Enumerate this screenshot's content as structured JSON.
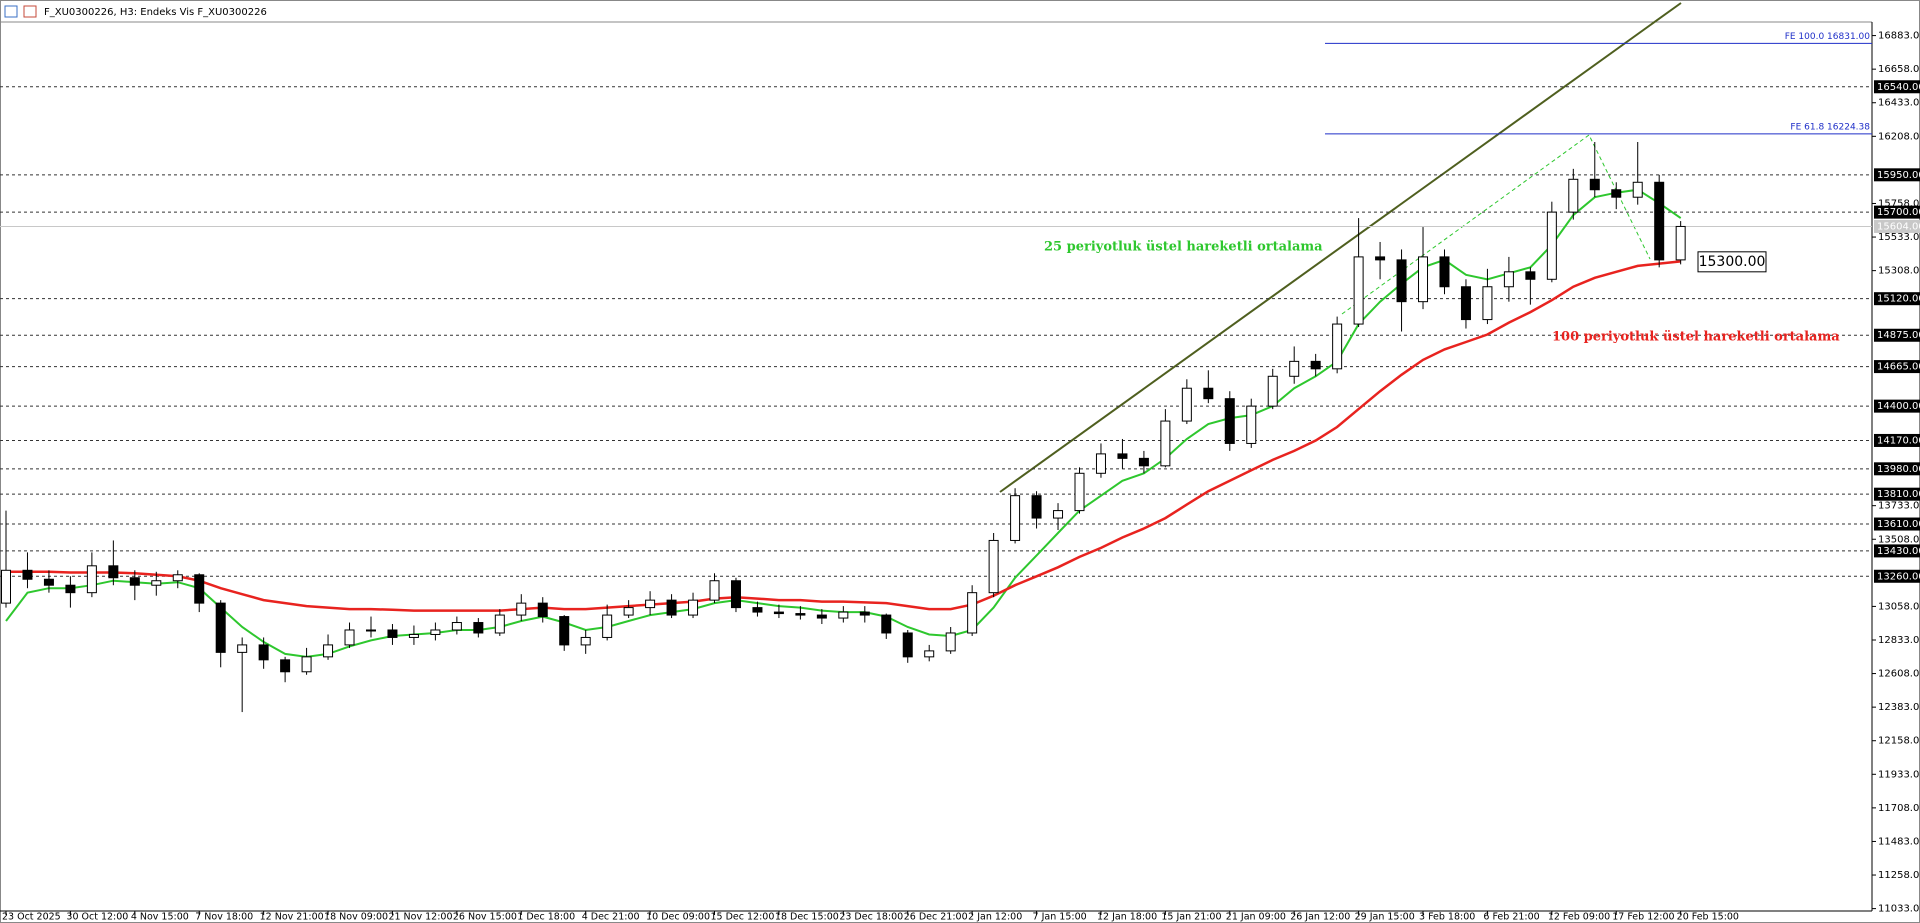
{
  "chart_data": {
    "type": "candlestick",
    "title": "F_XU0300226, H3:  Endeks Vis F_XU0300226",
    "categories": [
      "23 Oct 2025",
      null,
      null,
      "30 Oct 12:00",
      null,
      null,
      "4 Nov 15:00",
      null,
      null,
      "7 Nov 18:00",
      null,
      null,
      "12 Nov 21:00",
      null,
      null,
      "18 Nov 09:00",
      null,
      null,
      "21 Nov 12:00",
      null,
      null,
      "26 Nov 15:00",
      null,
      null,
      "1 Dec 18:00",
      null,
      null,
      "4 Dec 21:00",
      null,
      null,
      "10 Dec 09:00",
      null,
      null,
      "15 Dec 12:00",
      null,
      null,
      "18 Dec 15:00",
      null,
      null,
      "23 Dec 18:00",
      null,
      null,
      "26 Dec 21:00",
      null,
      null,
      "2 Jan 12:00",
      null,
      null,
      "7 Jan 15:00",
      null,
      null,
      "12 Jan 18:00",
      null,
      null,
      "15 Jan 21:00",
      null,
      null,
      "21 Jan 09:00",
      null,
      null,
      "26 Jan 12:00",
      null,
      null,
      "29 Jan 15:00",
      null,
      null,
      "3 Feb 18:00",
      null,
      null,
      "6 Feb 21:00",
      null,
      null,
      "12 Feb 09:00",
      null,
      null,
      "17 Feb 12:00",
      null,
      null,
      "20 Feb 15:00"
    ],
    "open": [
      13080,
      13300,
      13240,
      13200,
      13150,
      13330,
      13250,
      13200,
      13230,
      13270,
      13080,
      12750,
      12800,
      12700,
      12620,
      12720,
      12800,
      12900,
      12900,
      12850,
      12870,
      12900,
      12950,
      12880,
      13000,
      13080,
      12990,
      12800,
      12850,
      13000,
      13050,
      13100,
      13000,
      13100,
      13230,
      13050,
      13020,
      13010,
      13000,
      12980,
      13020,
      13000,
      12880,
      12720,
      12760,
      12880,
      13150,
      13500,
      13800,
      13650,
      13700,
      13950,
      14080,
      14050,
      14000,
      14300,
      14520,
      14450,
      14150,
      14400,
      14600,
      14700,
      14650,
      14950,
      15400,
      15380,
      15100,
      15400,
      15200,
      14980,
      15200,
      15300,
      15250,
      15700,
      15920,
      15850,
      15800,
      15900,
      15380
    ],
    "high": [
      13700,
      13420,
      13300,
      13260,
      13420,
      13500,
      13300,
      13290,
      13300,
      13280,
      13100,
      12850,
      12850,
      12720,
      12780,
      12870,
      12950,
      12990,
      12940,
      12930,
      12950,
      12990,
      12980,
      13040,
      13140,
      13120,
      13000,
      12900,
      13070,
      13100,
      13160,
      13140,
      13150,
      13280,
      13250,
      13090,
      13070,
      13060,
      13040,
      13060,
      13060,
      13010,
      12900,
      12800,
      12920,
      13200,
      13550,
      13850,
      13830,
      13750,
      13990,
      14150,
      14180,
      14100,
      14380,
      14580,
      14640,
      14500,
      14450,
      14650,
      14800,
      14750,
      15000,
      15660,
      15500,
      15450,
      15600,
      15450,
      15250,
      15320,
      15400,
      15330,
      15770,
      15990,
      16170,
      15900,
      16170,
      15950,
      15640
    ],
    "low": [
      13050,
      13180,
      13150,
      13050,
      13120,
      13200,
      13100,
      13130,
      13180,
      13020,
      12650,
      12350,
      12640,
      12550,
      12600,
      12700,
      12780,
      12850,
      12800,
      12800,
      12830,
      12870,
      12850,
      12860,
      12960,
      12950,
      12760,
      12740,
      12830,
      12980,
      13000,
      12980,
      12980,
      13080,
      13020,
      12990,
      12980,
      12970,
      12940,
      12950,
      12950,
      12840,
      12680,
      12690,
      12740,
      12860,
      13120,
      13480,
      13580,
      13570,
      13680,
      13920,
      13980,
      13950,
      13990,
      14280,
      14420,
      14100,
      14120,
      14380,
      14550,
      14600,
      14620,
      14930,
      15250,
      14900,
      15050,
      15150,
      14920,
      14950,
      15100,
      15080,
      15230,
      15650,
      15800,
      15720,
      15750,
      15330,
      15350
    ],
    "close": [
      13300,
      13240,
      13200,
      13150,
      13330,
      13250,
      13200,
      13230,
      13270,
      13080,
      12750,
      12800,
      12700,
      12620,
      12720,
      12800,
      12900,
      12900,
      12850,
      12870,
      12900,
      12950,
      12880,
      13000,
      13080,
      12990,
      12800,
      12850,
      13000,
      13050,
      13100,
      13000,
      13100,
      13230,
      13050,
      13020,
      13010,
      13000,
      12980,
      13020,
      13000,
      12880,
      12720,
      12760,
      12880,
      13150,
      13500,
      13800,
      13650,
      13700,
      13950,
      14080,
      14050,
      14000,
      14300,
      14520,
      14450,
      14150,
      14400,
      14600,
      14700,
      14650,
      14950,
      15400,
      15380,
      15100,
      15400,
      15200,
      14980,
      15200,
      15300,
      15250,
      15700,
      15920,
      15850,
      15800,
      15900,
      15380,
      15604
    ],
    "series": [
      {
        "name": "25 periyotluk üstel hareketli ortalama",
        "color": "#2ec72e",
        "values": [
          12960,
          13150,
          13180,
          13180,
          13200,
          13230,
          13220,
          13210,
          13220,
          13180,
          13050,
          12920,
          12820,
          12740,
          12720,
          12740,
          12790,
          12830,
          12860,
          12870,
          12880,
          12900,
          12900,
          12920,
          12960,
          12990,
          12950,
          12900,
          12920,
          12960,
          13000,
          13020,
          13040,
          13080,
          13100,
          13080,
          13060,
          13050,
          13030,
          13020,
          13020,
          12990,
          12920,
          12870,
          12860,
          12900,
          13050,
          13250,
          13400,
          13550,
          13700,
          13800,
          13900,
          13950,
          14050,
          14180,
          14280,
          14320,
          14340,
          14400,
          14520,
          14600,
          14700,
          14950,
          15100,
          15220,
          15330,
          15380,
          15280,
          15250,
          15290,
          15330,
          15480,
          15680,
          15800,
          15830,
          15850,
          15760,
          15660
        ]
      },
      {
        "name": "100 periyotluk üstel hareketli ortalama",
        "color": "#e8231f",
        "values": [
          13290,
          13290,
          13290,
          13285,
          13285,
          13285,
          13280,
          13270,
          13260,
          13230,
          13180,
          13140,
          13100,
          13080,
          13060,
          13050,
          13040,
          13040,
          13035,
          13030,
          13030,
          13030,
          13030,
          13030,
          13040,
          13050,
          13040,
          13040,
          13050,
          13060,
          13070,
          13080,
          13090,
          13110,
          13120,
          13110,
          13100,
          13100,
          13090,
          13090,
          13085,
          13080,
          13060,
          13040,
          13040,
          13070,
          13130,
          13200,
          13260,
          13320,
          13390,
          13450,
          13520,
          13580,
          13650,
          13740,
          13830,
          13900,
          13970,
          14040,
          14100,
          14170,
          14260,
          14380,
          14500,
          14610,
          14710,
          14780,
          14830,
          14880,
          14960,
          15030,
          15110,
          15200,
          15260,
          15300,
          15340,
          15355,
          15370
        ]
      }
    ],
    "ylim": [
      11017,
      16974
    ],
    "yticks": [
      {
        "value": 16883,
        "label": "16883.00"
      },
      {
        "value": 16658,
        "label": "16658.00"
      },
      {
        "value": 16433,
        "label": "16433.00"
      },
      {
        "value": 16208,
        "label": "16208.00"
      },
      {
        "value": 15758,
        "label": "15758.00"
      },
      {
        "value": 15533,
        "label": "15533.00"
      },
      {
        "value": 15308,
        "label": "15308.00"
      },
      {
        "value": 13733,
        "label": "13733.00"
      },
      {
        "value": 13508,
        "label": "13508.00"
      },
      {
        "value": 13058,
        "label": "13058.00"
      },
      {
        "value": 12833,
        "label": "12833.00"
      },
      {
        "value": 12608,
        "label": "12608.00"
      },
      {
        "value": 12383,
        "label": "12383.00"
      },
      {
        "value": 12158,
        "label": "12158.00"
      },
      {
        "value": 11933,
        "label": "11933.00"
      },
      {
        "value": 11708,
        "label": "11708.00"
      },
      {
        "value": 11483,
        "label": "11483.00"
      },
      {
        "value": 11258,
        "label": "11258.00"
      },
      {
        "value": 11033,
        "label": "11033.00"
      }
    ],
    "levels": [
      {
        "value": 16540,
        "label": "16540.00"
      },
      {
        "value": 15950,
        "label": "15950.00"
      },
      {
        "value": 15700,
        "label": "15700.00"
      },
      {
        "value": 15120,
        "label": "15120.00"
      },
      {
        "value": 14875,
        "label": "14875.00"
      },
      {
        "value": 14665,
        "label": "14665.00"
      },
      {
        "value": 14400,
        "label": "14400.00"
      },
      {
        "value": 14170,
        "label": "14170.00"
      },
      {
        "value": 13980,
        "label": "13980.00"
      },
      {
        "value": 13810,
        "label": "13810.00"
      },
      {
        "value": 13610,
        "label": "13610.00"
      },
      {
        "value": 13430,
        "label": "13430.00"
      },
      {
        "value": 13260,
        "label": "13260.00"
      }
    ],
    "current_price": {
      "value": 15604,
      "label": "15604.00"
    },
    "fibo": [
      {
        "value": 16831,
        "label": "FE 100.0 16831.00"
      },
      {
        "value": 16224.38,
        "label": "FE 61.8 16224.38"
      }
    ],
    "ema_label": {
      "value": 15300,
      "label": "15300.00"
    }
  }
}
